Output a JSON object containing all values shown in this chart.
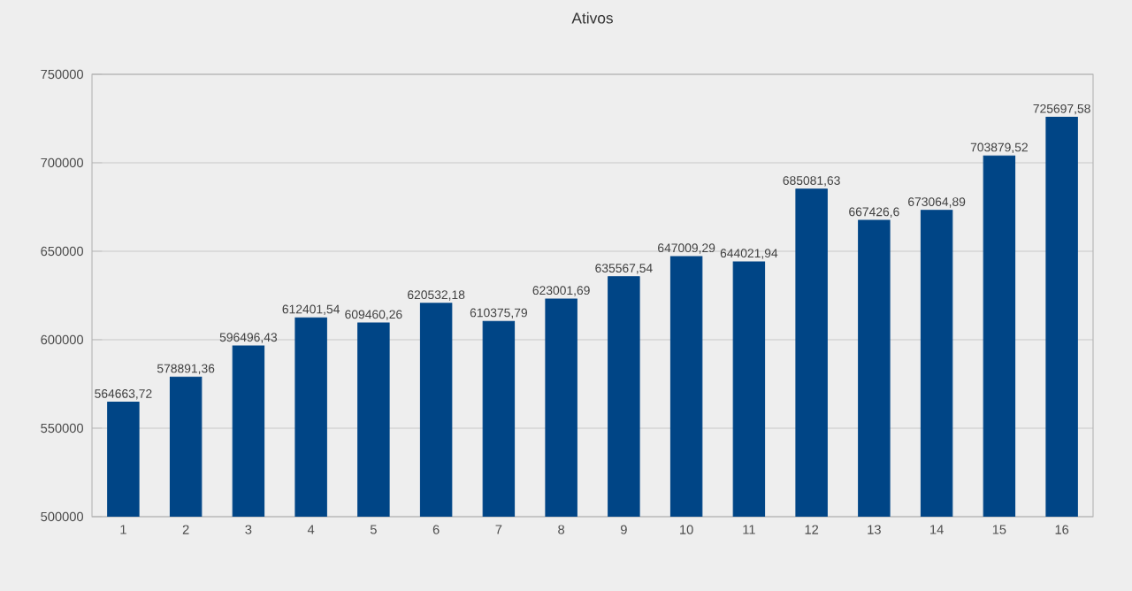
{
  "chart_data": {
    "type": "bar",
    "title": "Ativos",
    "categories": [
      "1",
      "2",
      "3",
      "4",
      "5",
      "6",
      "7",
      "8",
      "9",
      "10",
      "11",
      "12",
      "13",
      "14",
      "15",
      "16"
    ],
    "values": [
      564663.72,
      578891.36,
      596496.43,
      612401.54,
      609460.26,
      620532.18,
      610375.79,
      623001.69,
      635567.54,
      647009.29,
      644021.94,
      685081.63,
      667426.6,
      673064.89,
      703879.52,
      725697.58
    ],
    "value_labels": [
      "564663,72",
      "578891,36",
      "596496,43",
      "612401,54",
      "609460,26",
      "620532,18",
      "610375,79",
      "623001,69",
      "635567,54",
      "647009,29",
      "644021,94",
      "685081,63",
      "667426,6",
      "673064,89",
      "703879,52",
      "725697,58"
    ],
    "color": "#004586",
    "ylim": [
      500000,
      750000
    ],
    "yticks": [
      500000,
      550000,
      600000,
      650000,
      700000,
      750000
    ],
    "grid": "y"
  }
}
